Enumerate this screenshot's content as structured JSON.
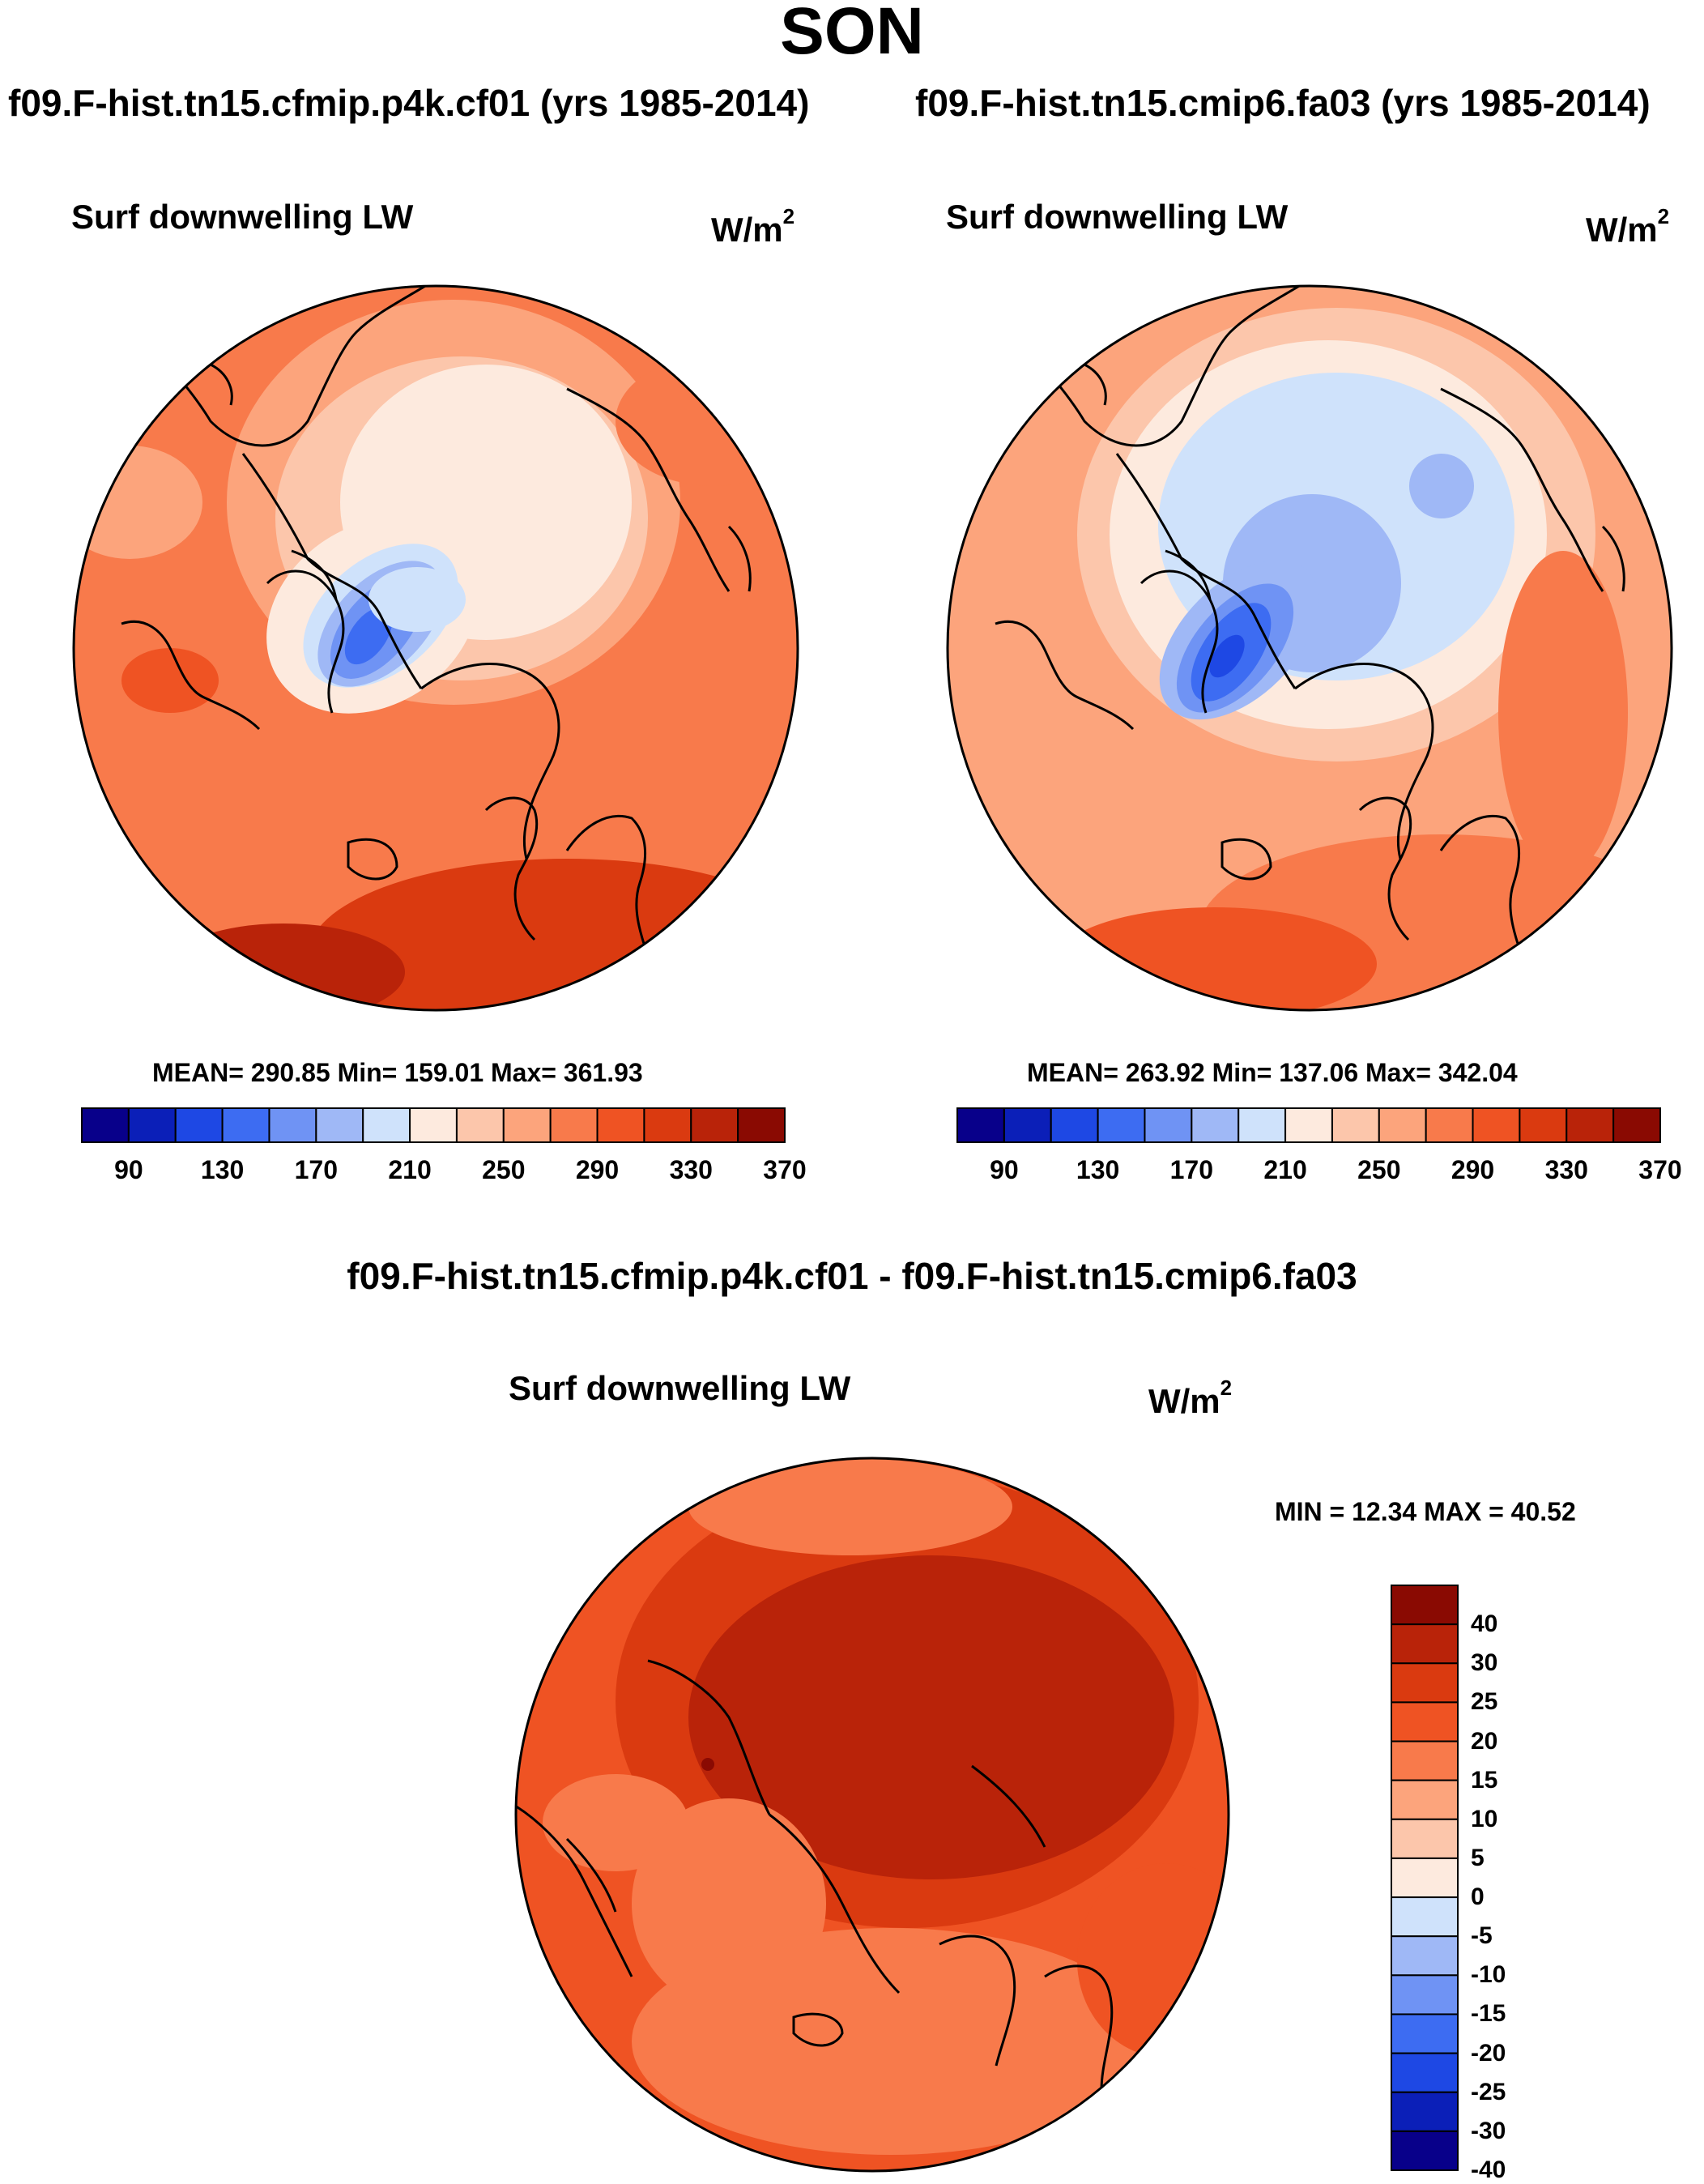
{
  "title": "SON",
  "panels": [
    {
      "id": "p4k",
      "case_title": "f09.F-hist.tn15.cfmip.p4k.cf01 (yrs 1985-2014)",
      "variable": "Surf downwelling LW",
      "units_base": "W/m",
      "units_exp": "2",
      "stats": "MEAN= 290.85  Min= 159.01  Max= 361.93"
    },
    {
      "id": "cmip6",
      "case_title": "f09.F-hist.tn15.cmip6.fa03 (yrs 1985-2014)",
      "variable": "Surf downwelling LW",
      "units_base": "W/m",
      "units_exp": "2",
      "stats": "MEAN= 263.92  Min= 137.06  Max= 342.04"
    }
  ],
  "diff_panel": {
    "title": "f09.F-hist.tn15.cfmip.p4k.cf01 - f09.F-hist.tn15.cmip6.fa03",
    "variable": "Surf downwelling LW",
    "units_base": "W/m",
    "units_exp": "2",
    "stats": "MIN =  12.34 MAX =  40.52"
  },
  "colors": {
    "main_scale": [
      "#08008a",
      "#0b1fb8",
      "#1e48e4",
      "#3d6cf2",
      "#6f93f4",
      "#9fb8f6",
      "#cfe2fb",
      "#fdeade",
      "#fcc6ab",
      "#fca47c",
      "#f87a4b",
      "#ef5323",
      "#da3a10",
      "#b92309",
      "#8a0a02"
    ],
    "diff_scale": [
      "#08008a",
      "#0b1fb8",
      "#1e48e4",
      "#3d6cf2",
      "#6f93f4",
      "#9fb8f6",
      "#cfe2fb",
      "#fdeade",
      "#fcc6ab",
      "#fca47c",
      "#f87a4b",
      "#ef5323",
      "#da3a10",
      "#b92309",
      "#8a0a02"
    ]
  },
  "main_colorbar_labels": [
    "90",
    "130",
    "170",
    "210",
    "250",
    "290",
    "330",
    "370"
  ],
  "diff_colorbar_labels": [
    "40",
    "30",
    "25",
    "20",
    "15",
    "10",
    "5",
    "0",
    "-5",
    "-10",
    "-15",
    "-20",
    "-25",
    "-30",
    "-40"
  ]
}
